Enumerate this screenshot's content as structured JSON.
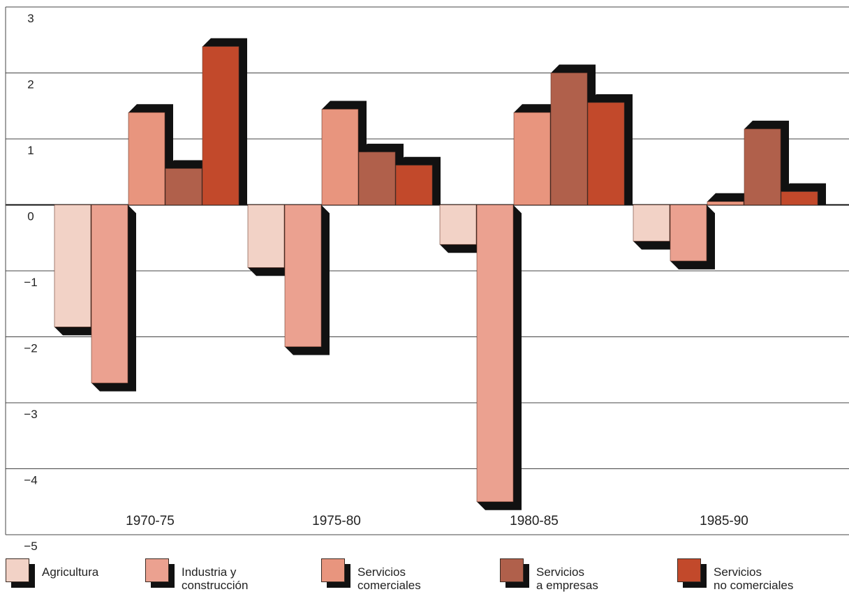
{
  "chart_data": {
    "type": "bar",
    "title": "",
    "xlabel": "",
    "ylabel": "",
    "ylim": [
      -5,
      3
    ],
    "yticks": [
      3,
      2,
      1,
      0,
      -1,
      -2,
      -3,
      -4,
      -5
    ],
    "ytick_labels": [
      "3",
      "2",
      "1",
      "0",
      "−1",
      "−2",
      "−3",
      "−4",
      "−5"
    ],
    "grid": true,
    "legend_position": "bottom",
    "categories": [
      "1970-75",
      "1975-80",
      "1980-85",
      "1985-90"
    ],
    "series": [
      {
        "name": "Agricultura",
        "color": "#f2d2c6",
        "values": [
          -1.85,
          -0.95,
          -0.6,
          -0.55
        ]
      },
      {
        "name": "Industria y construcción",
        "color": "#eba190",
        "values": [
          -2.7,
          -2.15,
          -4.5,
          -0.85
        ]
      },
      {
        "name": "Servicios comerciales",
        "color": "#e8957e",
        "values": [
          1.4,
          1.45,
          1.4,
          0.05
        ]
      },
      {
        "name": "Servicios a empresas",
        "color": "#b0604b",
        "values": [
          0.55,
          0.8,
          2.0,
          1.15
        ]
      },
      {
        "name": "Servicios no comerciales",
        "color": "#c2492b",
        "values": [
          2.4,
          0.6,
          1.55,
          0.2
        ]
      }
    ]
  },
  "legend": [
    {
      "line1": "Agricultura",
      "line2": ""
    },
    {
      "line1": "Industria y",
      "line2": "construcción"
    },
    {
      "line1": "Servicios",
      "line2": "comerciales"
    },
    {
      "line1": "Servicios",
      "line2": "a empresas"
    },
    {
      "line1": "Servicios",
      "line2": "no comerciales"
    }
  ]
}
